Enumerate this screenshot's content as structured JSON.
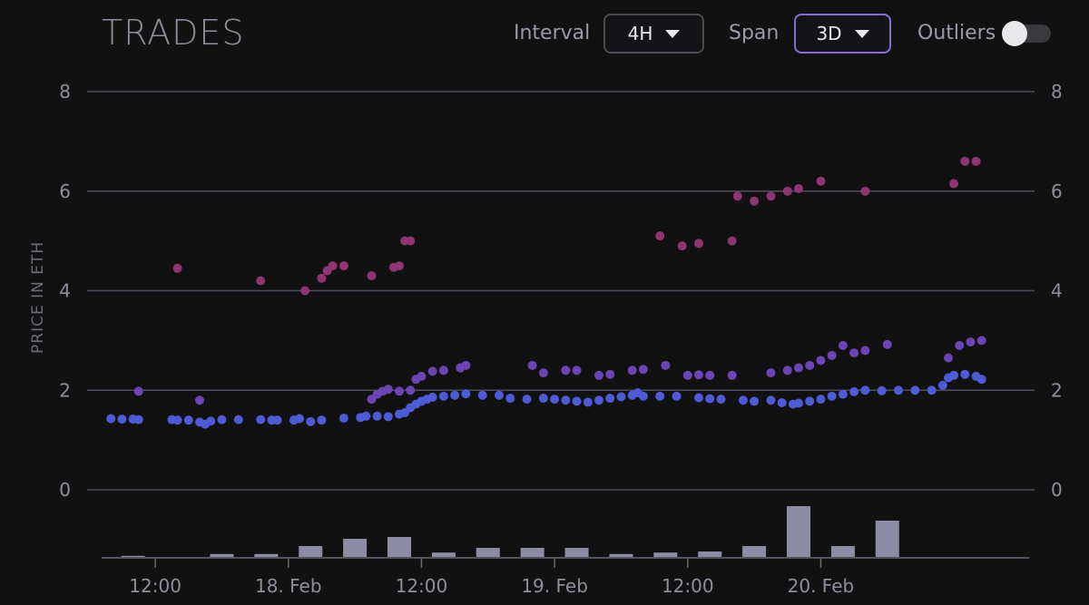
{
  "header": {
    "title": "TRADES",
    "interval_label": "Interval",
    "interval_value": "4H",
    "span_label": "Span",
    "span_value": "3D",
    "outliers_label": "Outliers",
    "outliers_on": false
  },
  "chart_data": {
    "type": "scatter",
    "ylabel": "PRICE IN ETH",
    "ylim": [
      0,
      8
    ],
    "yticks": [
      0,
      2,
      4,
      6,
      8
    ],
    "xlim": [
      "2023-02-17T07:00",
      "2023-02-20T16:00"
    ],
    "xticks": [
      {
        "x": "2023-02-17T12:00",
        "label": "12:00"
      },
      {
        "x": "2023-02-18T00:00",
        "label": "18. Feb"
      },
      {
        "x": "2023-02-18T12:00",
        "label": "12:00"
      },
      {
        "x": "2023-02-19T00:00",
        "label": "19. Feb"
      },
      {
        "x": "2023-02-19T12:00",
        "label": "12:00"
      },
      {
        "x": "2023-02-20T00:00",
        "label": "20. Feb"
      }
    ],
    "series": [
      {
        "color": "#4f5bd5",
        "points": [
          [
            "2023-02-17T08:00",
            1.43
          ],
          [
            "2023-02-17T09:00",
            1.42
          ],
          [
            "2023-02-17T10:00",
            1.42
          ],
          [
            "2023-02-17T10:30",
            1.41
          ],
          [
            "2023-02-17T13:30",
            1.41
          ],
          [
            "2023-02-17T14:00",
            1.4
          ],
          [
            "2023-02-17T15:00",
            1.4
          ],
          [
            "2023-02-17T16:00",
            1.36
          ],
          [
            "2023-02-17T16:30",
            1.32
          ],
          [
            "2023-02-17T17:00",
            1.38
          ],
          [
            "2023-02-17T18:00",
            1.41
          ],
          [
            "2023-02-17T19:30",
            1.41
          ],
          [
            "2023-02-17T21:30",
            1.41
          ],
          [
            "2023-02-17T22:30",
            1.4
          ],
          [
            "2023-02-17T23:00",
            1.4
          ],
          [
            "2023-02-18T00:30",
            1.4
          ],
          [
            "2023-02-18T01:00",
            1.43
          ],
          [
            "2023-02-18T02:00",
            1.37
          ],
          [
            "2023-02-18T03:00",
            1.4
          ],
          [
            "2023-02-18T05:00",
            1.44
          ],
          [
            "2023-02-18T06:30",
            1.45
          ],
          [
            "2023-02-18T07:00",
            1.48
          ],
          [
            "2023-02-18T08:00",
            1.48
          ],
          [
            "2023-02-18T09:00",
            1.47
          ],
          [
            "2023-02-18T10:00",
            1.52
          ],
          [
            "2023-02-18T10:30",
            1.55
          ],
          [
            "2023-02-18T11:00",
            1.65
          ],
          [
            "2023-02-18T11:30",
            1.72
          ],
          [
            "2023-02-18T12:00",
            1.78
          ],
          [
            "2023-02-18T12:30",
            1.82
          ],
          [
            "2023-02-18T13:00",
            1.86
          ],
          [
            "2023-02-18T14:00",
            1.88
          ],
          [
            "2023-02-18T15:00",
            1.9
          ],
          [
            "2023-02-18T16:00",
            1.93
          ],
          [
            "2023-02-18T17:30",
            1.9
          ],
          [
            "2023-02-18T19:00",
            1.9
          ],
          [
            "2023-02-18T20:00",
            1.84
          ],
          [
            "2023-02-18T21:30",
            1.82
          ],
          [
            "2023-02-18T23:00",
            1.84
          ],
          [
            "2023-02-19T00:00",
            1.82
          ],
          [
            "2023-02-19T01:00",
            1.8
          ],
          [
            "2023-02-19T02:00",
            1.78
          ],
          [
            "2023-02-19T03:00",
            1.76
          ],
          [
            "2023-02-19T04:00",
            1.8
          ],
          [
            "2023-02-19T05:00",
            1.84
          ],
          [
            "2023-02-19T06:00",
            1.87
          ],
          [
            "2023-02-19T07:00",
            1.9
          ],
          [
            "2023-02-19T07:30",
            1.95
          ],
          [
            "2023-02-19T08:00",
            1.88
          ],
          [
            "2023-02-19T09:30",
            1.88
          ],
          [
            "2023-02-19T11:00",
            1.88
          ],
          [
            "2023-02-19T13:00",
            1.85
          ],
          [
            "2023-02-19T14:00",
            1.83
          ],
          [
            "2023-02-19T15:00",
            1.82
          ],
          [
            "2023-02-19T17:00",
            1.8
          ],
          [
            "2023-02-19T18:00",
            1.78
          ],
          [
            "2023-02-19T19:30",
            1.8
          ],
          [
            "2023-02-19T20:30",
            1.75
          ],
          [
            "2023-02-19T21:30",
            1.72
          ],
          [
            "2023-02-19T22:00",
            1.74
          ],
          [
            "2023-02-19T23:00",
            1.78
          ],
          [
            "2023-02-20T00:00",
            1.82
          ],
          [
            "2023-02-20T01:00",
            1.88
          ],
          [
            "2023-02-20T02:00",
            1.92
          ],
          [
            "2023-02-20T03:00",
            1.97
          ],
          [
            "2023-02-20T04:00",
            2.0
          ],
          [
            "2023-02-20T05:30",
            1.99
          ],
          [
            "2023-02-20T07:00",
            2.0
          ],
          [
            "2023-02-20T08:30",
            2.0
          ],
          [
            "2023-02-20T10:00",
            2.0
          ],
          [
            "2023-02-20T11:00",
            2.1
          ],
          [
            "2023-02-20T11:30",
            2.25
          ],
          [
            "2023-02-20T12:00",
            2.3
          ],
          [
            "2023-02-20T13:00",
            2.32
          ],
          [
            "2023-02-20T14:00",
            2.28
          ],
          [
            "2023-02-20T14:30",
            2.22
          ]
        ]
      },
      {
        "color": "#6b45b4",
        "points": [
          [
            "2023-02-17T10:30",
            1.98
          ],
          [
            "2023-02-17T16:00",
            1.8
          ],
          [
            "2023-02-18T07:30",
            1.82
          ],
          [
            "2023-02-18T08:00",
            1.92
          ],
          [
            "2023-02-18T08:30",
            1.98
          ],
          [
            "2023-02-18T09:00",
            2.02
          ],
          [
            "2023-02-18T10:00",
            1.98
          ],
          [
            "2023-02-18T11:00",
            2.0
          ],
          [
            "2023-02-18T11:30",
            2.22
          ],
          [
            "2023-02-18T12:00",
            2.28
          ],
          [
            "2023-02-18T13:00",
            2.38
          ],
          [
            "2023-02-18T14:00",
            2.4
          ],
          [
            "2023-02-18T15:30",
            2.45
          ],
          [
            "2023-02-18T16:00",
            2.5
          ],
          [
            "2023-02-18T22:00",
            2.5
          ],
          [
            "2023-02-18T23:00",
            2.35
          ],
          [
            "2023-02-19T01:00",
            2.4
          ],
          [
            "2023-02-19T02:00",
            2.4
          ],
          [
            "2023-02-19T04:00",
            2.3
          ],
          [
            "2023-02-19T05:00",
            2.32
          ],
          [
            "2023-02-19T07:00",
            2.4
          ],
          [
            "2023-02-19T08:00",
            2.42
          ],
          [
            "2023-02-19T10:00",
            2.5
          ],
          [
            "2023-02-19T12:00",
            2.3
          ],
          [
            "2023-02-19T13:00",
            2.31
          ],
          [
            "2023-02-19T14:00",
            2.3
          ],
          [
            "2023-02-19T16:00",
            2.3
          ],
          [
            "2023-02-19T19:30",
            2.35
          ],
          [
            "2023-02-19T21:00",
            2.4
          ],
          [
            "2023-02-19T22:00",
            2.45
          ],
          [
            "2023-02-19T23:00",
            2.5
          ],
          [
            "2023-02-20T00:00",
            2.6
          ],
          [
            "2023-02-20T01:00",
            2.7
          ],
          [
            "2023-02-20T02:00",
            2.9
          ],
          [
            "2023-02-20T03:00",
            2.75
          ],
          [
            "2023-02-20T04:00",
            2.8
          ],
          [
            "2023-02-20T06:00",
            2.92
          ],
          [
            "2023-02-20T11:30",
            2.65
          ],
          [
            "2023-02-20T12:30",
            2.9
          ],
          [
            "2023-02-20T13:30",
            2.97
          ],
          [
            "2023-02-20T14:30",
            3.0
          ]
        ]
      },
      {
        "color": "#8e3572",
        "points": [
          [
            "2023-02-17T14:00",
            4.45
          ],
          [
            "2023-02-17T21:30",
            4.2
          ],
          [
            "2023-02-18T01:30",
            4.0
          ],
          [
            "2023-02-18T03:00",
            4.25
          ],
          [
            "2023-02-18T03:30",
            4.4
          ],
          [
            "2023-02-18T04:00",
            4.5
          ],
          [
            "2023-02-18T05:00",
            4.5
          ],
          [
            "2023-02-18T07:30",
            4.3
          ],
          [
            "2023-02-18T09:30",
            4.47
          ],
          [
            "2023-02-18T10:00",
            4.5
          ],
          [
            "2023-02-18T10:30",
            5.0
          ],
          [
            "2023-02-18T11:00",
            5.0
          ],
          [
            "2023-02-19T09:30",
            5.1
          ],
          [
            "2023-02-19T11:30",
            4.9
          ],
          [
            "2023-02-19T13:00",
            4.95
          ],
          [
            "2023-02-19T16:00",
            5.0
          ],
          [
            "2023-02-19T16:30",
            5.9
          ],
          [
            "2023-02-19T18:00",
            5.8
          ],
          [
            "2023-02-19T19:30",
            5.9
          ],
          [
            "2023-02-19T21:00",
            6.0
          ],
          [
            "2023-02-19T22:00",
            6.05
          ],
          [
            "2023-02-20T00:00",
            6.2
          ],
          [
            "2023-02-20T04:00",
            6.0
          ],
          [
            "2023-02-20T12:00",
            6.15
          ],
          [
            "2023-02-20T13:00",
            6.6
          ],
          [
            "2023-02-20T14:00",
            6.6
          ]
        ]
      }
    ],
    "volume": {
      "color": "#8c8ca4",
      "bars": [
        [
          "2023-02-17T10:00",
          0.3
        ],
        [
          "2023-02-17T18:00",
          0.8
        ],
        [
          "2023-02-17T22:00",
          0.8
        ],
        [
          "2023-02-18T02:00",
          3.0
        ],
        [
          "2023-02-18T06:00",
          5.0
        ],
        [
          "2023-02-18T10:00",
          5.5
        ],
        [
          "2023-02-18T14:00",
          1.2
        ],
        [
          "2023-02-18T18:00",
          2.5
        ],
        [
          "2023-02-18T22:00",
          2.5
        ],
        [
          "2023-02-19T02:00",
          2.5
        ],
        [
          "2023-02-19T06:00",
          0.8
        ],
        [
          "2023-02-19T10:00",
          1.2
        ],
        [
          "2023-02-19T14:00",
          1.5
        ],
        [
          "2023-02-19T18:00",
          3.0
        ],
        [
          "2023-02-19T22:00",
          14.0
        ],
        [
          "2023-02-20T02:00",
          3.0
        ],
        [
          "2023-02-20T06:00",
          10.0
        ]
      ]
    }
  }
}
